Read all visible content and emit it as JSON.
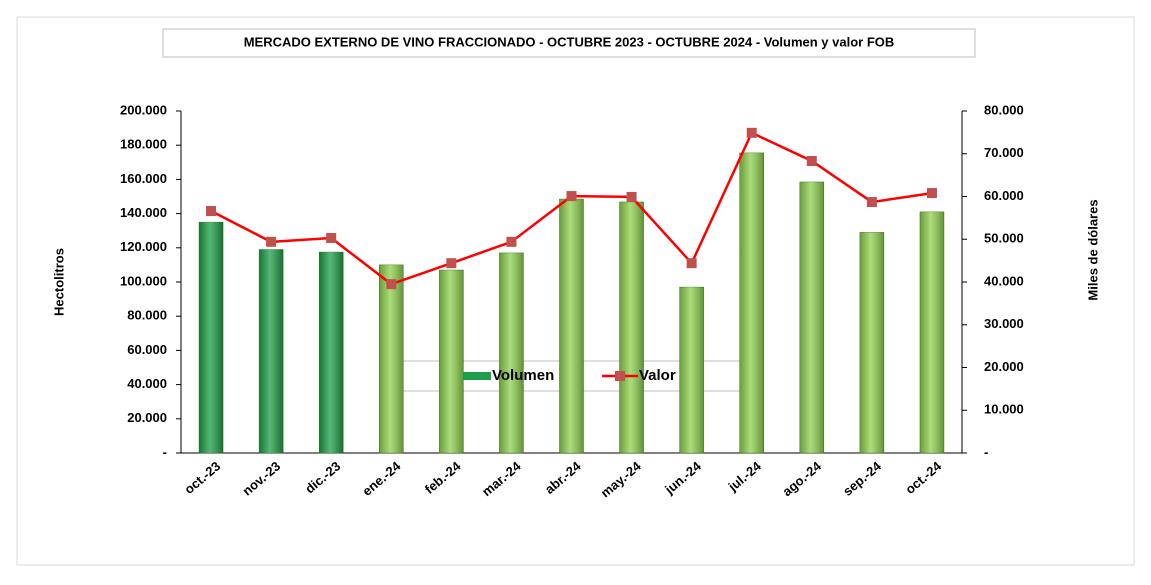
{
  "chart_data": {
    "type": "bar_line",
    "title": "MERCADO EXTERNO DE VINO FRACCIONADO - OCTUBRE 2023 - OCTUBRE 2024 - Volumen y valor FOB",
    "y_label": "Hectolitros",
    "y2_label": "Miles de dólares",
    "categories": [
      "oct.-23",
      "nov.-23",
      "dic.-23",
      "ene.-24",
      "feb.-24",
      "mar.-24",
      "abr.-24",
      "may.-24",
      "jun.-24",
      "jul.-24",
      "ago.-24",
      "sep.-24",
      "oct.-24"
    ],
    "series": [
      {
        "name": "Volumen",
        "type": "bar",
        "color": "#8fd14f",
        "colors": [
          "#1e9e48",
          "#1e9e48",
          "#1e9e48",
          "#8fd14f",
          "#8fd14f",
          "#8fd14f",
          "#8fd14f",
          "#8fd14f",
          "#8fd14f",
          "#8fd14f",
          "#8fd14f",
          "#8fd14f",
          "#8fd14f"
        ],
        "values": [
          135000,
          119000,
          117500,
          110000,
          107000,
          117000,
          148500,
          146800,
          97000,
          175500,
          158500,
          129000,
          141000
        ]
      },
      {
        "name": "Valor",
        "type": "line",
        "axis": "y2",
        "color": "#ff0000",
        "marker_color": "#c0504d",
        "values": [
          56600,
          49400,
          50300,
          39500,
          44400,
          49400,
          60100,
          59900,
          44400,
          74900,
          68300,
          58700,
          60800
        ]
      }
    ],
    "ylim": [
      0,
      200000
    ],
    "yticks": [
      {
        "value": 0,
        "label": "-"
      },
      {
        "value": 20000,
        "label": "20.000"
      },
      {
        "value": 40000,
        "label": "40.000"
      },
      {
        "value": 60000,
        "label": "60.000"
      },
      {
        "value": 80000,
        "label": "80.000"
      },
      {
        "value": 100000,
        "label": "100.000"
      },
      {
        "value": 120000,
        "label": "120.000"
      },
      {
        "value": 140000,
        "label": "140.000"
      },
      {
        "value": 160000,
        "label": "160.000"
      },
      {
        "value": 180000,
        "label": "180.000"
      },
      {
        "value": 200000,
        "label": "200.000"
      }
    ],
    "y2lim": [
      0,
      80000
    ],
    "y2ticks": [
      {
        "value": 0,
        "label": "-"
      },
      {
        "value": 10000,
        "label": "10.000"
      },
      {
        "value": 20000,
        "label": "20.000"
      },
      {
        "value": 30000,
        "label": "30.000"
      },
      {
        "value": 40000,
        "label": "40.000"
      },
      {
        "value": 50000,
        "label": "50.000"
      },
      {
        "value": 60000,
        "label": "60.000"
      },
      {
        "value": 70000,
        "label": "70.000"
      },
      {
        "value": 80000,
        "label": "80.000"
      }
    ],
    "legend": "bottom"
  }
}
